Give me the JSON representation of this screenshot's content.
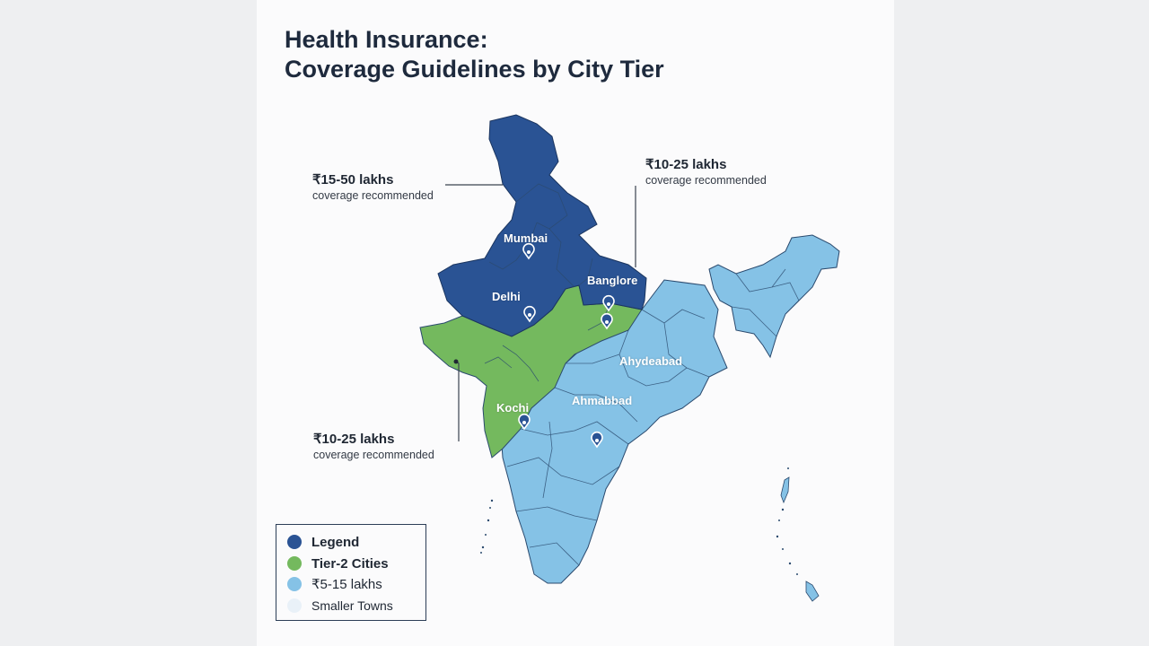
{
  "title": {
    "line1": "Health Insurance:",
    "line2": "Coverage Guidelines by City Tier"
  },
  "colors": {
    "tier1": "#2a5394",
    "tier2": "#74b95e",
    "tier3": "#85c2e6",
    "smaller_towns": "#e9f1f8",
    "leader_line": "#3a4350"
  },
  "callouts": [
    {
      "amount": "₹15-50 lakhs",
      "subtitle": "coverage recommended"
    },
    {
      "amount": "₹10-25 lakhs",
      "subtitle": "coverage recommended"
    },
    {
      "amount": "₹10-25 lakhs",
      "subtitle": "coverage recommended"
    }
  ],
  "cities": [
    "Mumbai",
    "Delhi",
    "Banglore",
    "Ahydeabad",
    "Kochi",
    "Ahmabbad"
  ],
  "legend": [
    {
      "label": "Legend",
      "color": "#2a5394"
    },
    {
      "label": "Tier-2 Cities",
      "color": "#74b95e"
    },
    {
      "label": "₹5-15 lakhs",
      "color": "#85c2e6"
    },
    {
      "label": "Smaller Towns",
      "color": "#e9f1f8"
    }
  ]
}
